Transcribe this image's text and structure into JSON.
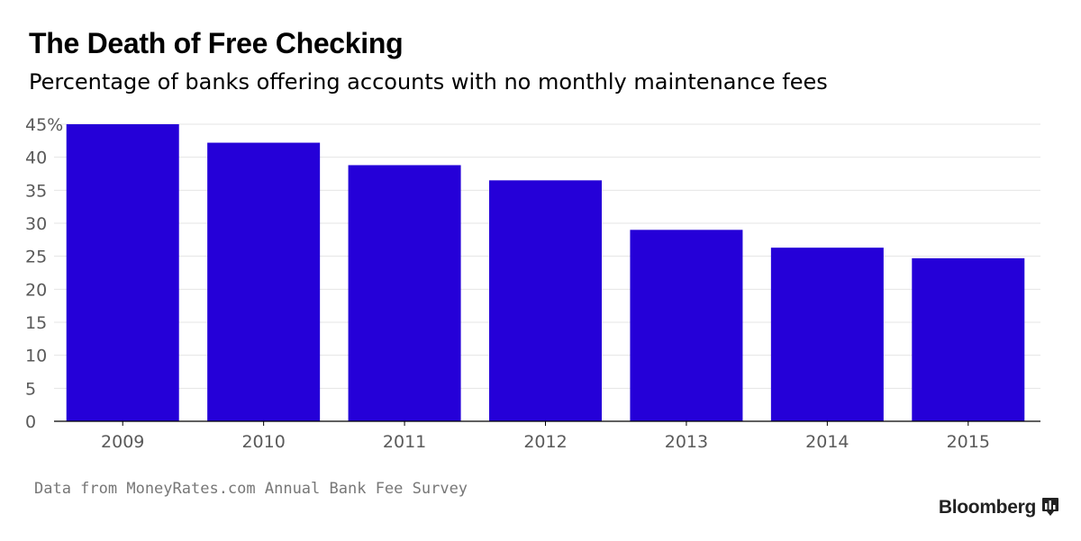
{
  "title": "The Death of Free Checking",
  "subtitle": "Percentage of banks offering accounts with no monthly maintenance fees",
  "source": "Data from MoneyRates.com Annual Bank Fee Survey",
  "brand": "Bloomberg",
  "brand_icon": "bloomberg-terminal-icon",
  "chart_data": {
    "type": "bar",
    "categories": [
      "2009",
      "2010",
      "2011",
      "2012",
      "2013",
      "2014",
      "2015"
    ],
    "values": [
      45.0,
      42.2,
      38.8,
      36.5,
      29.0,
      26.3,
      24.7
    ],
    "ylim": [
      0,
      45
    ],
    "yticks": [
      0,
      5,
      10,
      15,
      20,
      25,
      30,
      35,
      40,
      45
    ],
    "ytick_labels": [
      "0",
      "5",
      "10",
      "15",
      "20",
      "25",
      "30",
      "35",
      "40",
      "45%"
    ],
    "grid": true,
    "bar_color": "#2500d8",
    "grid_color": "#e5e5e5",
    "axis_color": "#000000",
    "xlabel": "",
    "ylabel": ""
  }
}
